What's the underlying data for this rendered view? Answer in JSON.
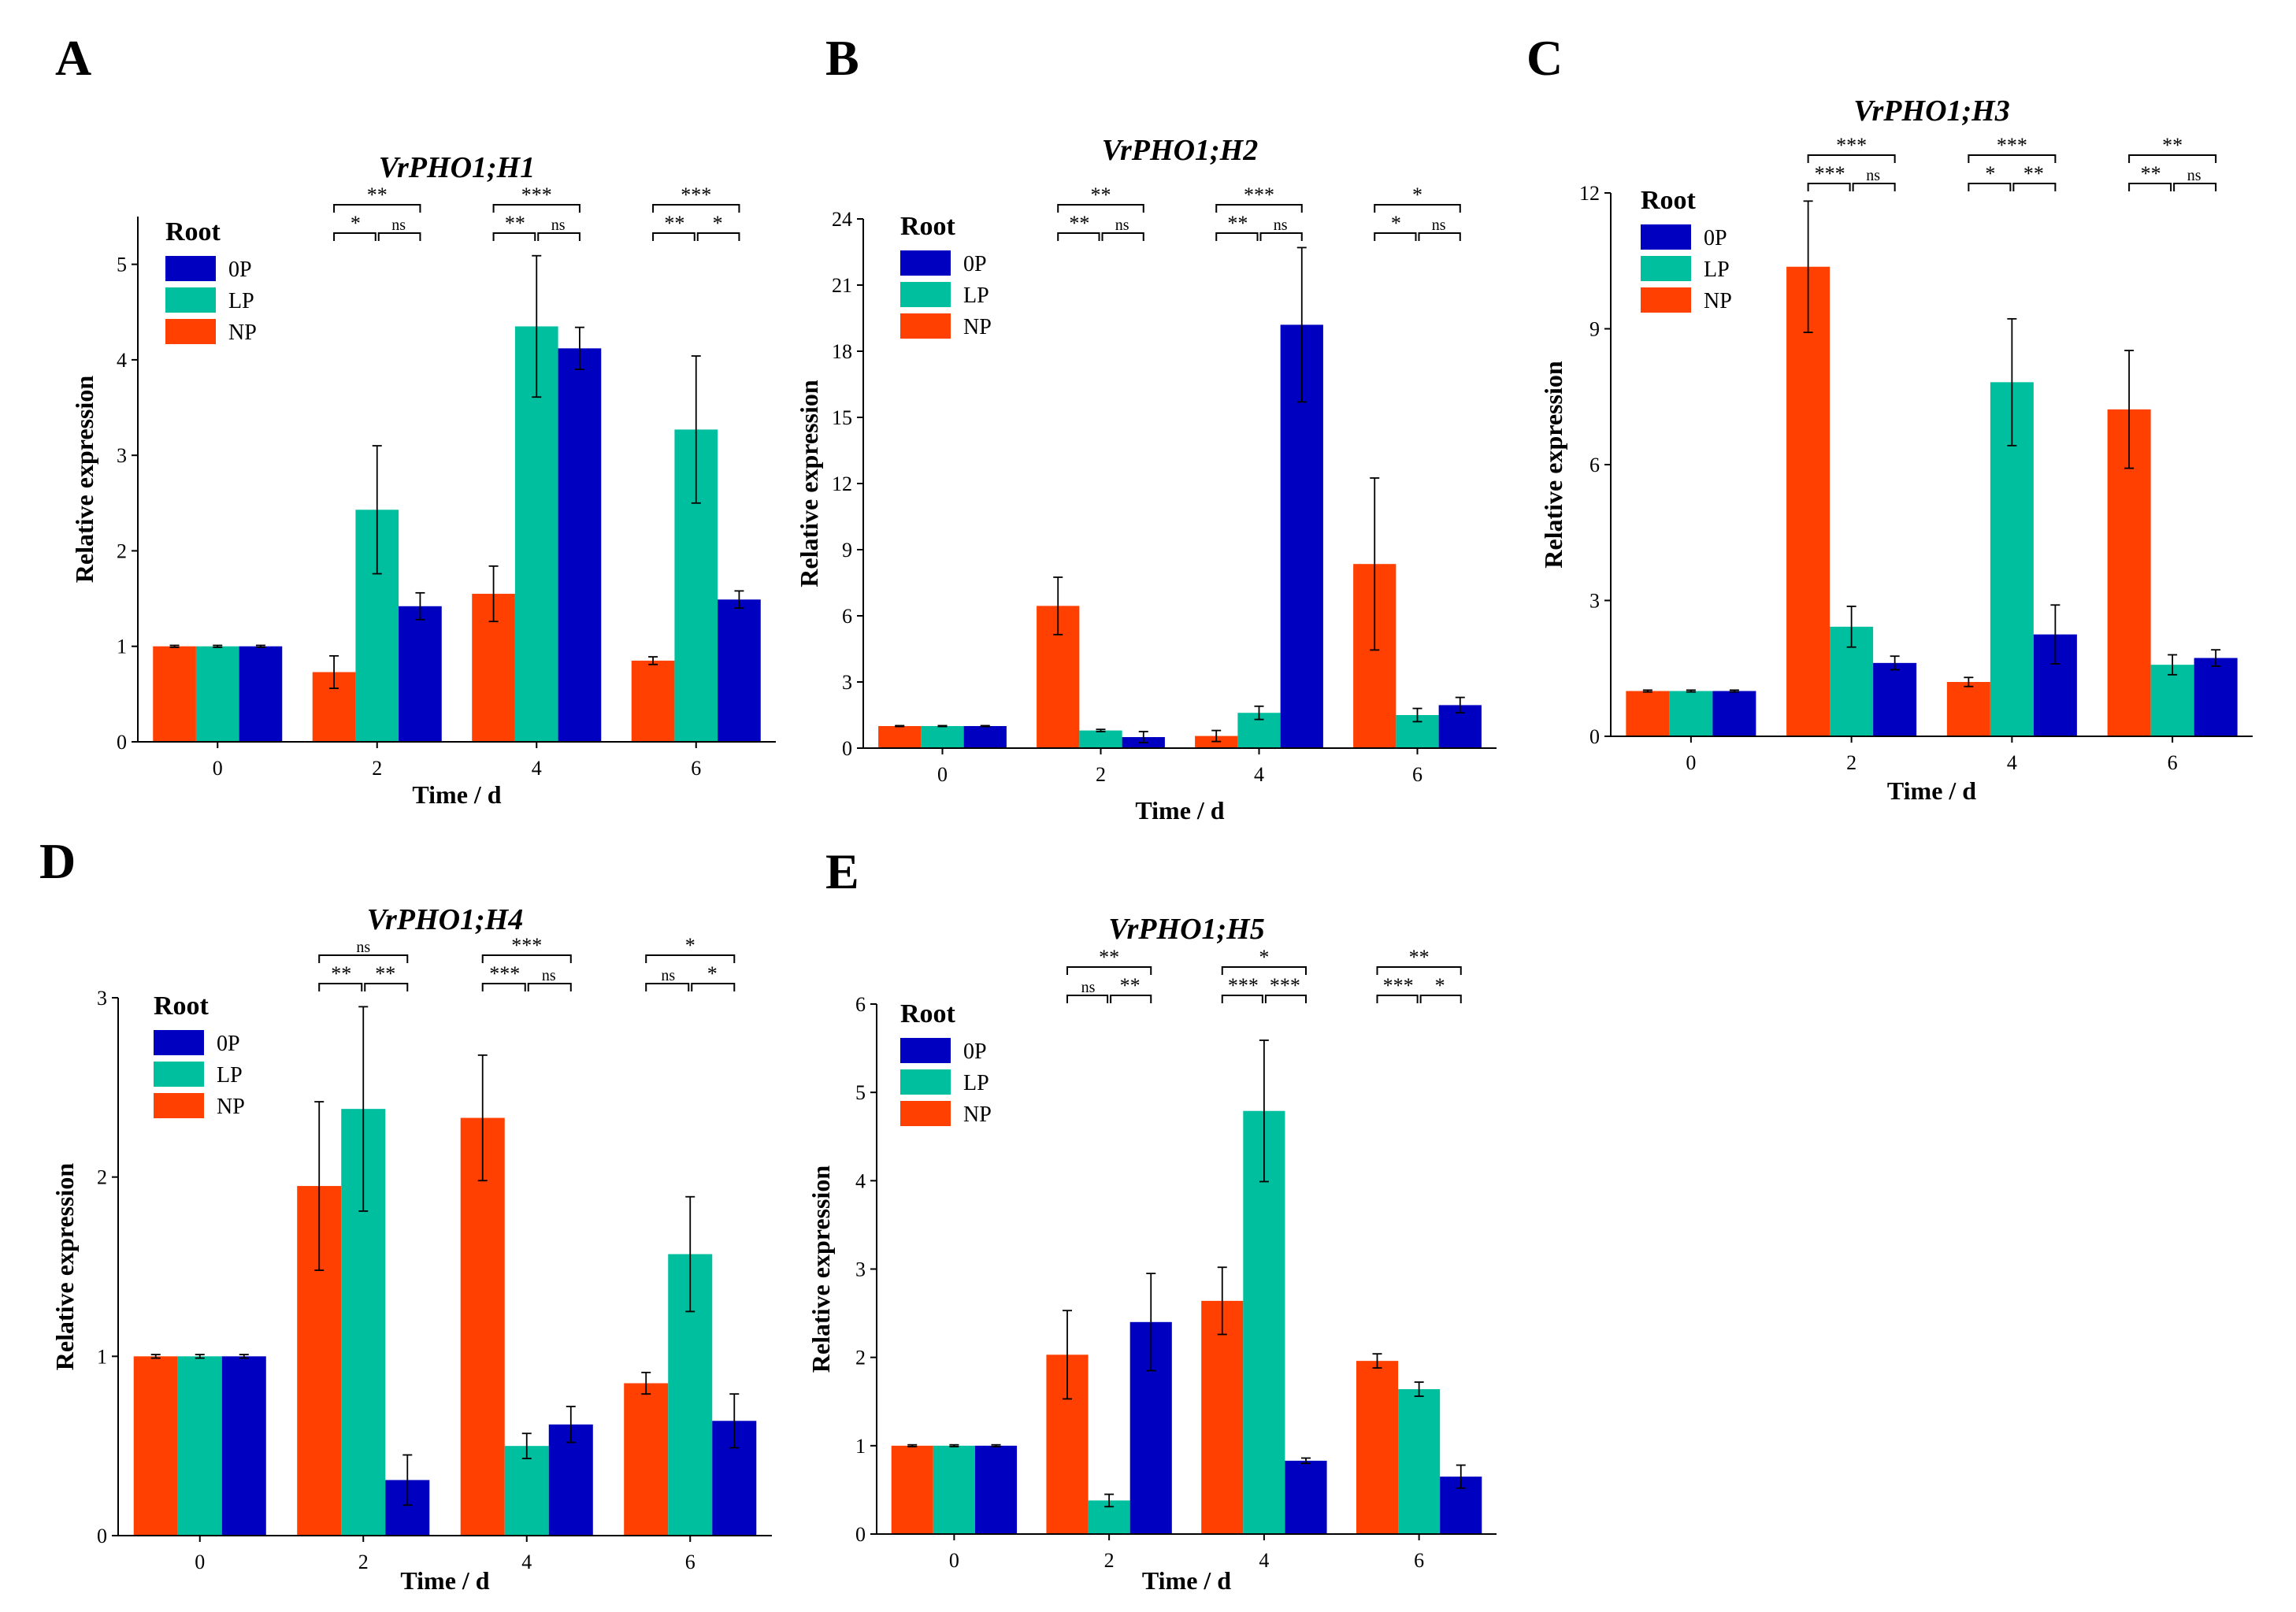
{
  "colors": {
    "0P": "#0000c0",
    "LP": "#00bf9f",
    "NP": "#ff4000"
  },
  "chart_data": [
    {
      "type": "bar",
      "panel": "A",
      "title": "VrPHO1;H1",
      "xlabel": "Time / d",
      "ylabel": "Relative expression",
      "categories": [
        "0",
        "2",
        "4",
        "6"
      ],
      "ylim": [
        0,
        5.5
      ],
      "yticks": [
        "0",
        "1",
        "2",
        "3",
        "4",
        "5"
      ],
      "legend_title": "Root",
      "legend_order": [
        "0P",
        "LP",
        "NP"
      ],
      "series": [
        {
          "name": "NP",
          "values": [
            1.0,
            0.73,
            1.55,
            0.85
          ],
          "errors": [
            0.01,
            0.17,
            0.29,
            0.04
          ]
        },
        {
          "name": "LP",
          "values": [
            1.0,
            2.43,
            4.35,
            3.27
          ],
          "errors": [
            0.01,
            0.67,
            0.74,
            0.77
          ]
        },
        {
          "name": "0P",
          "values": [
            1.0,
            1.42,
            4.12,
            1.49
          ],
          "errors": [
            0.01,
            0.14,
            0.22,
            0.09
          ]
        }
      ],
      "significance": [
        {
          "category": "2",
          "outer": "**",
          "left": "*",
          "right": "ns"
        },
        {
          "category": "4",
          "outer": "***",
          "left": "**",
          "right": "ns"
        },
        {
          "category": "6",
          "outer": "***",
          "left": "**",
          "right": "*"
        }
      ]
    },
    {
      "type": "bar",
      "panel": "B",
      "title": "VrPHO1;H2",
      "xlabel": "Time / d",
      "ylabel": "Relative expression",
      "categories": [
        "0",
        "2",
        "4",
        "6"
      ],
      "ylim": [
        0,
        24
      ],
      "yticks": [
        "0",
        "3",
        "6",
        "9",
        "12",
        "15",
        "18",
        "21",
        "24"
      ],
      "legend_title": "Root",
      "legend_order": [
        "0P",
        "LP",
        "NP"
      ],
      "series": [
        {
          "name": "NP",
          "values": [
            1.0,
            6.45,
            0.55,
            8.35
          ],
          "errors": [
            0.02,
            1.3,
            0.25,
            3.9
          ]
        },
        {
          "name": "LP",
          "values": [
            1.0,
            0.8,
            1.6,
            1.5
          ],
          "errors": [
            0.02,
            0.05,
            0.3,
            0.3
          ]
        },
        {
          "name": "0P",
          "values": [
            1.0,
            0.5,
            19.2,
            1.95
          ],
          "errors": [
            0.02,
            0.25,
            3.5,
            0.35
          ]
        }
      ],
      "significance": [
        {
          "category": "2",
          "outer": "**",
          "left": "**",
          "right": "ns"
        },
        {
          "category": "4",
          "outer": "***",
          "left": "**",
          "right": "ns"
        },
        {
          "category": "6",
          "outer": "*",
          "left": "*",
          "right": "ns"
        }
      ]
    },
    {
      "type": "bar",
      "panel": "C",
      "title": "VrPHO1;H3",
      "xlabel": "Time / d",
      "ylabel": "Relative expression",
      "categories": [
        "0",
        "2",
        "4",
        "6"
      ],
      "ylim": [
        0,
        12
      ],
      "yticks": [
        "0",
        "3",
        "6",
        "9",
        "12"
      ],
      "legend_title": "Root",
      "legend_order": [
        "0P",
        "LP",
        "NP"
      ],
      "series": [
        {
          "name": "NP",
          "values": [
            1.0,
            10.37,
            1.2,
            7.22
          ],
          "errors": [
            0.02,
            1.45,
            0.1,
            1.3
          ]
        },
        {
          "name": "LP",
          "values": [
            1.0,
            2.42,
            7.82,
            1.58
          ],
          "errors": [
            0.02,
            0.45,
            1.4,
            0.22
          ]
        },
        {
          "name": "0P",
          "values": [
            1.0,
            1.62,
            2.25,
            1.73
          ],
          "errors": [
            0.02,
            0.15,
            0.65,
            0.18
          ]
        }
      ],
      "significance": [
        {
          "category": "2",
          "outer": "***",
          "left": "***",
          "right": "ns"
        },
        {
          "category": "4",
          "outer": "***",
          "left": "*",
          "right": "**"
        },
        {
          "category": "6",
          "outer": "**",
          "left": "**",
          "right": "ns"
        }
      ]
    },
    {
      "type": "bar",
      "panel": "D",
      "title": "VrPHO1;H4",
      "xlabel": "Time / d",
      "ylabel": "Relative expression",
      "categories": [
        "0",
        "2",
        "4",
        "6"
      ],
      "ylim": [
        0,
        3
      ],
      "yticks": [
        "0",
        "1",
        "2",
        "3"
      ],
      "legend_title": "Root",
      "legend_order": [
        "0P",
        "LP",
        "NP"
      ],
      "series": [
        {
          "name": "NP",
          "values": [
            1.0,
            1.95,
            2.33,
            0.85
          ],
          "errors": [
            0.01,
            0.47,
            0.35,
            0.06
          ]
        },
        {
          "name": "LP",
          "values": [
            1.0,
            2.38,
            0.5,
            1.57
          ],
          "errors": [
            0.01,
            0.57,
            0.07,
            0.32
          ]
        },
        {
          "name": "0P",
          "values": [
            1.0,
            0.31,
            0.62,
            0.64
          ],
          "errors": [
            0.01,
            0.14,
            0.1,
            0.15
          ]
        }
      ],
      "significance": [
        {
          "category": "2",
          "outer": "ns",
          "left": "**",
          "right": "**"
        },
        {
          "category": "4",
          "outer": "***",
          "left": "***",
          "right": "ns"
        },
        {
          "category": "6",
          "outer": "*",
          "left": "ns",
          "right": "*"
        }
      ]
    },
    {
      "type": "bar",
      "panel": "E",
      "title": "VrPHO1;H5",
      "xlabel": "Time / d",
      "ylabel": "Relative expression",
      "categories": [
        "0",
        "2",
        "4",
        "6"
      ],
      "ylim": [
        0,
        6
      ],
      "yticks": [
        "0",
        "1",
        "2",
        "3",
        "4",
        "5",
        "6"
      ],
      "legend_title": "Root",
      "legend_order": [
        "0P",
        "LP",
        "NP"
      ],
      "series": [
        {
          "name": "NP",
          "values": [
            1.0,
            2.03,
            2.64,
            1.96
          ],
          "errors": [
            0.01,
            0.5,
            0.38,
            0.08
          ]
        },
        {
          "name": "LP",
          "values": [
            1.0,
            0.38,
            4.79,
            1.64
          ],
          "errors": [
            0.01,
            0.07,
            0.8,
            0.08
          ]
        },
        {
          "name": "0P",
          "values": [
            1.0,
            2.4,
            0.83,
            0.65
          ],
          "errors": [
            0.01,
            0.55,
            0.03,
            0.13
          ]
        }
      ],
      "significance": [
        {
          "category": "2",
          "outer": "**",
          "left": "ns",
          "right": "**"
        },
        {
          "category": "4",
          "outer": "*",
          "left": "***",
          "right": "***"
        },
        {
          "category": "6",
          "outer": "**",
          "left": "***",
          "right": "*"
        }
      ]
    }
  ]
}
